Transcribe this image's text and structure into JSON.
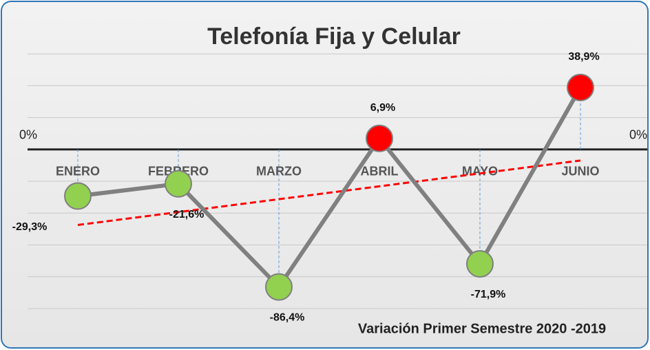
{
  "chart_data": {
    "type": "line",
    "title": "Telefonía Fija y Celular",
    "footer": "Variación Primer Semestre 2020 -2019",
    "categories": [
      "ENERO",
      "FEBRERO",
      "MARZO",
      "ABRIL",
      "MAYO",
      "JUNIO"
    ],
    "values": [
      -29.3,
      -21.6,
      -86.4,
      6.9,
      -71.9,
      38.9
    ],
    "value_labels": [
      "-29,3%",
      "-21,6%",
      "-86,4%",
      "6,9%",
      "-71,9%",
      "38,9%"
    ],
    "color": "#808080",
    "point_colors": [
      "#92d050",
      "#92d050",
      "#92d050",
      "#ff0000",
      "#92d050",
      "#ff0000"
    ],
    "ylim": [
      -110,
      80
    ],
    "yticks": [
      {
        "value": 0,
        "label": "0%"
      }
    ],
    "gridlines": [
      -100,
      -80,
      -60,
      -40,
      -20,
      20,
      40,
      60
    ],
    "grid": true,
    "trendline": {
      "type": "linear",
      "color": "#ff0000",
      "style": "dashed"
    },
    "drop_lines": {
      "color": "#5b9bd5",
      "style": "dashed"
    }
  }
}
